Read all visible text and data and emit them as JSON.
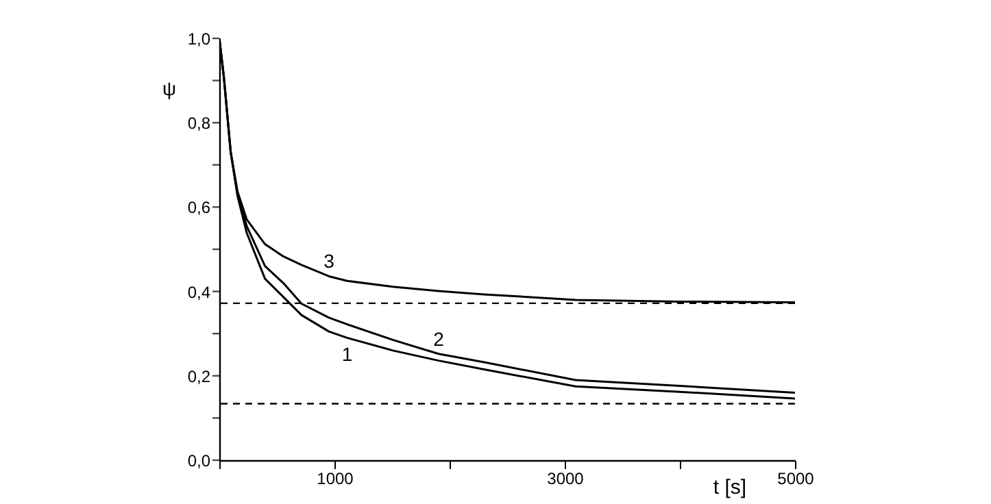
{
  "chart_data": {
    "type": "line",
    "xlabel": "t [s]",
    "ylabel": "ψ",
    "xlim": [
      0,
      5000
    ],
    "xticks": [
      {
        "value": 0,
        "label": null
      },
      1000,
      {
        "value": 2000,
        "label": null
      },
      3000,
      {
        "value": 4000,
        "label": null
      },
      5000
    ],
    "ylim": [
      0,
      1
    ],
    "yticks": [
      {
        "value": 0,
        "label": "0,0"
      },
      {
        "value": 0.1,
        "label": null
      },
      {
        "value": 0.2,
        "label": "0,2"
      },
      {
        "value": 0.3,
        "label": null
      },
      {
        "value": 0.4,
        "label": "0,4"
      },
      {
        "value": 0.5,
        "label": null
      },
      {
        "value": 0.6,
        "label": "0,6"
      },
      {
        "value": 0.7,
        "label": null
      },
      {
        "value": 0.8,
        "label": "0,8"
      },
      {
        "value": 0.9,
        "label": null
      },
      {
        "value": 1,
        "label": "1,0"
      }
    ],
    "grid": false,
    "legend": false,
    "marker": "none",
    "line_style": "solid",
    "series": [
      {
        "color": "#000000",
        "x": [
          0,
          40,
          99,
          159,
          238,
          397,
          556,
          714,
          952,
          1111,
          1508,
          1905,
          2302,
          3095,
          4000,
          5000
        ],
        "values": [
          1.0,
          0.907,
          0.73,
          0.625,
          0.539,
          0.43,
          0.387,
          0.344,
          0.305,
          0.29,
          0.26,
          0.236,
          0.215,
          0.175,
          0.162,
          0.146
        ]
      },
      {
        "color": "#000000",
        "x": [
          0,
          40,
          99,
          159,
          238,
          397,
          556,
          714,
          952,
          1111,
          1508,
          1905,
          2302,
          3095,
          4000,
          5000
        ],
        "values": [
          1.0,
          0.907,
          0.73,
          0.63,
          0.555,
          0.46,
          0.42,
          0.371,
          0.338,
          0.322,
          0.285,
          0.252,
          0.232,
          0.19,
          0.176,
          0.16
        ]
      },
      {
        "color": "#000000",
        "x": [
          0,
          40,
          99,
          159,
          238,
          397,
          556,
          714,
          952,
          1111,
          1508,
          1905,
          2302,
          3095,
          4000,
          5000
        ],
        "values": [
          1.0,
          0.907,
          0.73,
          0.636,
          0.571,
          0.512,
          0.483,
          0.463,
          0.436,
          0.425,
          0.411,
          0.401,
          0.393,
          0.38,
          0.376,
          0.374
        ]
      }
    ],
    "ref_lines": [
      {
        "axis": "y",
        "value": 0.372,
        "color": "#000000",
        "line_style": "dashed"
      },
      {
        "axis": "y",
        "value": 0.134,
        "color": "#000000",
        "line_style": "dashed"
      }
    ],
    "annotations": [
      {
        "text": "1",
        "x": 1111,
        "y": 0.29
      },
      {
        "text": "2",
        "x": 1905,
        "y": 0.252
      },
      {
        "text": "3",
        "x": 952,
        "y": 0.436
      }
    ]
  }
}
